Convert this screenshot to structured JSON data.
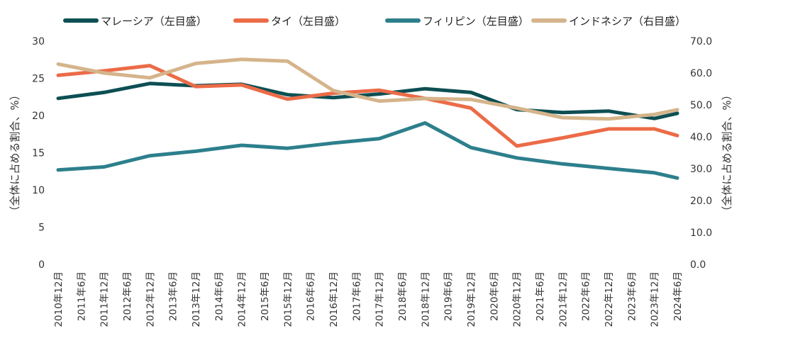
{
  "chart_data": {
    "type": "line",
    "x": [
      "2010年12月",
      "2011年6月",
      "2011年12月",
      "2012年6月",
      "2012年12月",
      "2013年6月",
      "2013年12月",
      "2014年6月",
      "2014年12月",
      "2015年6月",
      "2015年12月",
      "2016年6月",
      "2016年12月",
      "2017年6月",
      "2017年12月",
      "2018年6月",
      "2018年12月",
      "2019年6月",
      "2019年12月",
      "2020年6月",
      "2020年12月",
      "2021年6月",
      "2021年12月",
      "2022年6月",
      "2022年12月",
      "2023年6月",
      "2023年12月",
      "2024年6月"
    ],
    "y_left": {
      "label": "（全体に占める割合、%）",
      "range": [
        0,
        30
      ],
      "ticks": [
        "0",
        "5",
        "10",
        "15",
        "20",
        "25",
        "30"
      ]
    },
    "y_right": {
      "label": "（全体に占める割合、%）",
      "range": [
        0,
        70
      ],
      "ticks": [
        "0.0",
        "10.0",
        "20.0",
        "30.0",
        "40.0",
        "50.0",
        "60.0",
        "70.0"
      ]
    },
    "legend_position": "top",
    "grid": false,
    "series": [
      {
        "name": "マレーシア（左目盛）",
        "axis": "left",
        "color": "#0d4f53",
        "values": [
          22.3,
          null,
          23.1,
          null,
          24.3,
          null,
          24.0,
          null,
          24.2,
          null,
          22.8,
          null,
          22.4,
          null,
          22.9,
          null,
          23.6,
          null,
          23.1,
          null,
          20.8,
          null,
          20.4,
          null,
          20.6,
          null,
          19.6,
          20.3
        ]
      },
      {
        "name": "タイ（左目盛）",
        "axis": "left",
        "color": "#ec6b47",
        "values": [
          25.4,
          null,
          26.0,
          null,
          26.7,
          null,
          23.9,
          null,
          24.1,
          null,
          22.2,
          null,
          23.0,
          null,
          23.4,
          null,
          22.3,
          null,
          21.0,
          null,
          15.9,
          null,
          17.0,
          null,
          18.2,
          null,
          18.2,
          17.3
        ]
      },
      {
        "name": "フィリピン（左目盛）",
        "axis": "left",
        "color": "#2d7f8c",
        "values": [
          12.7,
          null,
          13.1,
          null,
          14.6,
          null,
          15.2,
          null,
          16.0,
          null,
          15.6,
          null,
          16.3,
          null,
          16.9,
          null,
          19.0,
          null,
          15.7,
          null,
          14.3,
          null,
          13.5,
          null,
          12.9,
          null,
          12.3,
          11.6
        ]
      },
      {
        "name": "インドネシア（右目盛）",
        "axis": "right",
        "color": "#d5b48b",
        "values": [
          62.8,
          null,
          60.0,
          null,
          58.5,
          null,
          63.0,
          null,
          64.3,
          null,
          63.7,
          null,
          54.5,
          null,
          51.2,
          null,
          52.0,
          null,
          51.7,
          null,
          49.0,
          null,
          46.0,
          null,
          45.6,
          null,
          47.0,
          48.5
        ]
      }
    ]
  }
}
